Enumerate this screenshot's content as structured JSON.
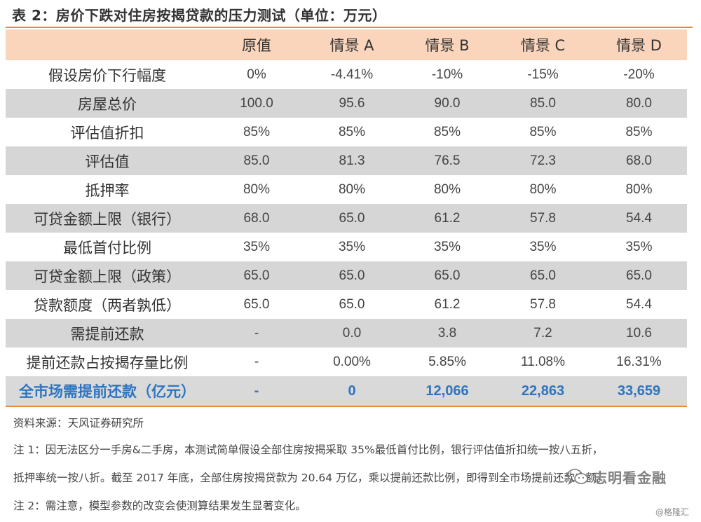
{
  "title": "表 2：房价下跌对住房按揭贷款的压力测试（单位：万元）",
  "table": {
    "headers": [
      "",
      "原值",
      "情景 A",
      "情景 B",
      "情景 C",
      "情景 D"
    ],
    "rows": [
      {
        "label": "假设房价下行幅度",
        "values": [
          "0%",
          "-4.41%",
          "-10%",
          "-15%",
          "-20%"
        ]
      },
      {
        "label": "房屋总价",
        "values": [
          "100.0",
          "95.6",
          "90.0",
          "85.0",
          "80.0"
        ]
      },
      {
        "label": "评估值折扣",
        "values": [
          "85%",
          "85%",
          "85%",
          "85%",
          "85%"
        ]
      },
      {
        "label": "评估值",
        "values": [
          "85.0",
          "81.3",
          "76.5",
          "72.3",
          "68.0"
        ]
      },
      {
        "label": "抵押率",
        "values": [
          "80%",
          "80%",
          "80%",
          "80%",
          "80%"
        ]
      },
      {
        "label": "可贷金额上限（银行）",
        "values": [
          "68.0",
          "65.0",
          "61.2",
          "57.8",
          "54.4"
        ]
      },
      {
        "label": "最低首付比例",
        "values": [
          "35%",
          "35%",
          "35%",
          "35%",
          "35%"
        ]
      },
      {
        "label": "可贷金额上限（政策）",
        "values": [
          "65.0",
          "65.0",
          "65.0",
          "65.0",
          "65.0"
        ]
      },
      {
        "label": "贷款额度（两者孰低）",
        "values": [
          "65.0",
          "65.0",
          "61.2",
          "57.8",
          "54.4"
        ]
      },
      {
        "label": "需提前还款",
        "values": [
          "-",
          "0.0",
          "3.8",
          "7.2",
          "10.6"
        ]
      },
      {
        "label": "提前还款占按揭存量比例",
        "values": [
          "-",
          "0.00%",
          "5.85%",
          "11.08%",
          "16.31%"
        ]
      }
    ],
    "total_row": {
      "label": "全市场需提前还款（亿元）",
      "values": [
        "-",
        "0",
        "12,066",
        "22,863",
        "33,659"
      ]
    }
  },
  "notes": {
    "source": "资料来源：天风证券研究所",
    "note1_line1": "注 1：因无法区分一手房&二手房，本测试简单假设全部住房按揭采取 35%最低首付比例，银行评估值折扣统一按八五折，",
    "note1_line2": "抵押率统一按八折。截至 2017 年底，全部住房按揭贷款为 20.64 万亿，乘以提前还款比例，即得到全市场提前还款金额。",
    "note2": "注 2：需注意，模型参数的改变会使测算结果发生显著变化。"
  },
  "watermark": {
    "text": "志明看金融",
    "icon": "wechat-icon"
  },
  "credit": "@格隆汇",
  "colors": {
    "accent_rule": "#e08a3a",
    "header_bg": "#fbd5bb",
    "shade_bg": "#d6d6d6",
    "total_text": "#2e74c0"
  }
}
